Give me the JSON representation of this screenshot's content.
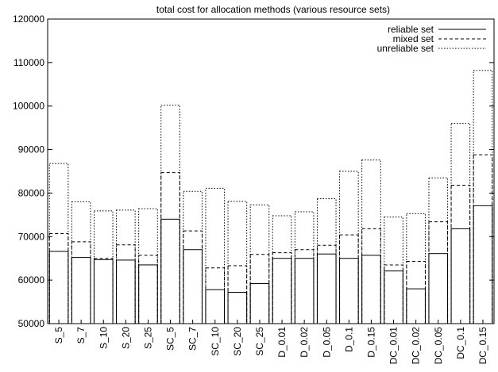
{
  "chart_data": {
    "type": "bar",
    "title": "total cost for allocation methods (various resource sets)",
    "xlabel": "",
    "ylabel": "",
    "ylim": [
      50000,
      120000
    ],
    "yticks": [
      50000,
      60000,
      70000,
      80000,
      90000,
      100000,
      110000,
      120000
    ],
    "grid": false,
    "legend_position": "top-right",
    "categories": [
      "S_5",
      "S_7",
      "S_10",
      "S_20",
      "S_25",
      "SC_5",
      "SC_7",
      "SC_10",
      "SC_20",
      "SC_25",
      "D_0.01",
      "D_0.02",
      "D_0.05",
      "D_0.1",
      "D_0.15",
      "DC_0.01",
      "DC_0.02",
      "DC_0.05",
      "DC_0.1",
      "DC_0.15"
    ],
    "series": [
      {
        "name": "reliable set",
        "line_style": "solid",
        "values": [
          66600,
          65200,
          64700,
          64600,
          63500,
          74000,
          67000,
          57800,
          57200,
          59200,
          65000,
          65000,
          66000,
          65000,
          65700,
          62100,
          58000,
          66100,
          71800,
          77100
        ]
      },
      {
        "name": "mixed set",
        "line_style": "dashed",
        "values": [
          70700,
          68800,
          65000,
          68100,
          65700,
          84700,
          71300,
          62800,
          63300,
          65900,
          66300,
          67000,
          68000,
          70400,
          71800,
          63500,
          64300,
          73400,
          81800,
          88800
        ]
      },
      {
        "name": "unreliable set",
        "line_style": "dotted",
        "values": [
          86800,
          78000,
          75900,
          76100,
          76400,
          100200,
          80400,
          81100,
          78100,
          77300,
          74800,
          75700,
          78700,
          85000,
          87600,
          74500,
          75300,
          83500,
          96000,
          108200
        ]
      }
    ]
  }
}
